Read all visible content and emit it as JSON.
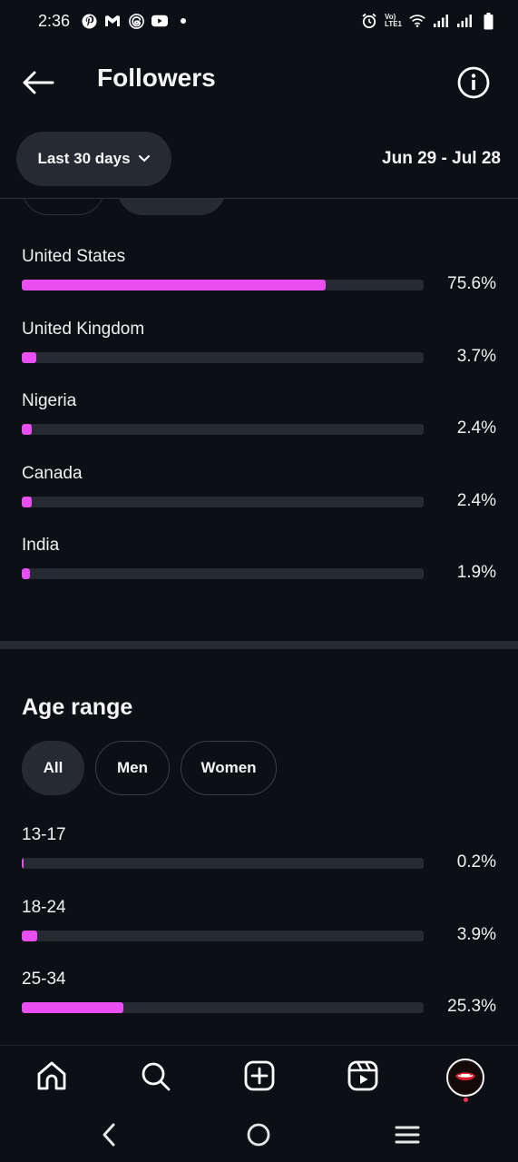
{
  "status_bar": {
    "time": "2:36",
    "left_icons": [
      "pinterest-icon",
      "gmail-icon",
      "threads-icon",
      "youtube-icon",
      "dot-icon"
    ],
    "right_icons": [
      "alarm-icon",
      "volte-icon",
      "wifi-icon",
      "signal-icon",
      "signal-icon",
      "battery-icon"
    ],
    "volte_line1": "Vo)",
    "volte_line2": "LTE1"
  },
  "header": {
    "title": "Followers",
    "back_icon": "arrow-left-icon",
    "info_icon": "info-icon"
  },
  "filter": {
    "range_label": "Last 30 days",
    "date_range": "Jun 29 - Jul 28"
  },
  "countries": [
    {
      "label": "United States",
      "value": "75.6%",
      "percent": 75.6
    },
    {
      "label": "United Kingdom",
      "value": "3.7%",
      "percent": 3.7
    },
    {
      "label": "Nigeria",
      "value": "2.4%",
      "percent": 2.4
    },
    {
      "label": "Canada",
      "value": "2.4%",
      "percent": 2.4
    },
    {
      "label": "India",
      "value": "1.9%",
      "percent": 1.9
    }
  ],
  "age_section": {
    "title": "Age range",
    "tabs": [
      {
        "label": "All",
        "active": true
      },
      {
        "label": "Men",
        "active": false
      },
      {
        "label": "Women",
        "active": false
      }
    ],
    "items": [
      {
        "label": "13-17",
        "value": "0.2%",
        "percent": 0.2
      },
      {
        "label": "18-24",
        "value": "3.9%",
        "percent": 3.9
      },
      {
        "label": "25-34",
        "value": "25.3%",
        "percent": 25.3
      }
    ]
  },
  "bottom_nav": [
    "home-icon",
    "search-icon",
    "create-icon",
    "reels-icon",
    "profile-avatar"
  ],
  "system_nav": [
    "back-icon",
    "home-circle-icon",
    "recents-icon"
  ],
  "colors": {
    "background": "#0c0f14",
    "accent": "#e84ef0",
    "track": "#262a33"
  }
}
